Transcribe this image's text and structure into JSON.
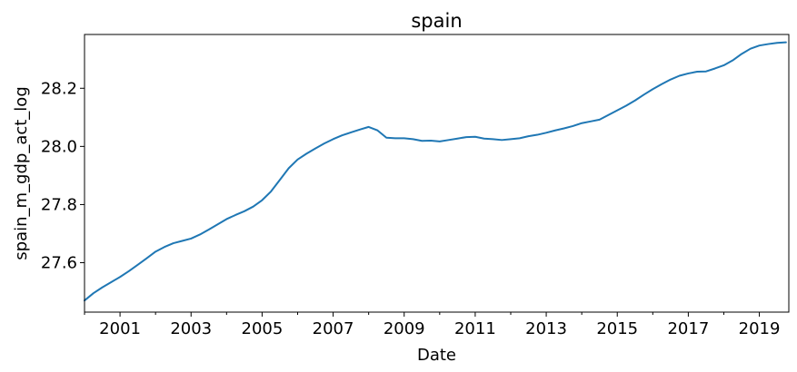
{
  "chart_data": {
    "type": "line",
    "title": "spain",
    "xlabel": "Date",
    "ylabel": "spain_m_gdp_act_log",
    "xlim": [
      2000.0,
      2019.83
    ],
    "ylim": [
      27.43,
      28.385
    ],
    "x_ticks": [
      {
        "value": 2001,
        "label": "2001"
      },
      {
        "value": 2003,
        "label": "2003"
      },
      {
        "value": 2005,
        "label": "2005"
      },
      {
        "value": 2007,
        "label": "2007"
      },
      {
        "value": 2009,
        "label": "2009"
      },
      {
        "value": 2011,
        "label": "2011"
      },
      {
        "value": 2013,
        "label": "2013"
      },
      {
        "value": 2015,
        "label": "2015"
      },
      {
        "value": 2017,
        "label": "2017"
      },
      {
        "value": 2019,
        "label": "2019"
      }
    ],
    "x_minor_ticks": [
      2000,
      2002,
      2004,
      2006,
      2008,
      2010,
      2012,
      2014,
      2016,
      2018
    ],
    "y_ticks": [
      {
        "value": 27.6,
        "label": "27.6"
      },
      {
        "value": 27.8,
        "label": "27.8"
      },
      {
        "value": 28.0,
        "label": "28.0"
      },
      {
        "value": 28.2,
        "label": "28.2"
      }
    ],
    "grid": false,
    "series": [
      {
        "color": "#1f77b4",
        "x": [
          2000.0,
          2000.25,
          2000.5,
          2000.75,
          2001.0,
          2001.25,
          2001.5,
          2001.75,
          2002.0,
          2002.25,
          2002.5,
          2002.75,
          2003.0,
          2003.25,
          2003.5,
          2003.75,
          2004.0,
          2004.25,
          2004.5,
          2004.75,
          2005.0,
          2005.25,
          2005.5,
          2005.75,
          2006.0,
          2006.25,
          2006.5,
          2006.75,
          2007.0,
          2007.25,
          2007.5,
          2007.75,
          2008.0,
          2008.25,
          2008.5,
          2008.75,
          2009.0,
          2009.25,
          2009.5,
          2009.75,
          2010.0,
          2010.25,
          2010.5,
          2010.75,
          2011.0,
          2011.25,
          2011.5,
          2011.75,
          2012.0,
          2012.25,
          2012.5,
          2012.75,
          2013.0,
          2013.25,
          2013.5,
          2013.75,
          2014.0,
          2014.25,
          2014.5,
          2014.75,
          2015.0,
          2015.25,
          2015.5,
          2015.75,
          2016.0,
          2016.25,
          2016.5,
          2016.75,
          2017.0,
          2017.25,
          2017.5,
          2017.75,
          2018.0,
          2018.25,
          2018.5,
          2018.75,
          2019.0,
          2019.25,
          2019.5,
          2019.75
        ],
        "values": [
          27.47,
          27.495,
          27.515,
          27.533,
          27.551,
          27.571,
          27.593,
          27.615,
          27.638,
          27.654,
          27.667,
          27.675,
          27.683,
          27.697,
          27.714,
          27.732,
          27.75,
          27.764,
          27.777,
          27.793,
          27.815,
          27.845,
          27.885,
          27.925,
          27.955,
          27.975,
          27.993,
          28.01,
          28.025,
          28.038,
          28.048,
          28.058,
          28.067,
          28.055,
          28.03,
          28.028,
          28.028,
          28.025,
          28.019,
          28.02,
          28.017,
          28.022,
          28.027,
          28.032,
          28.033,
          28.027,
          28.025,
          28.022,
          28.025,
          28.028,
          28.035,
          28.04,
          28.047,
          28.055,
          28.062,
          28.07,
          28.08,
          28.086,
          28.092,
          28.108,
          28.124,
          28.14,
          28.158,
          28.178,
          28.197,
          28.214,
          28.23,
          28.243,
          28.251,
          28.257,
          28.258,
          28.268,
          28.279,
          28.296,
          28.318,
          28.336,
          28.347,
          28.352,
          28.356,
          28.358
        ]
      }
    ]
  }
}
